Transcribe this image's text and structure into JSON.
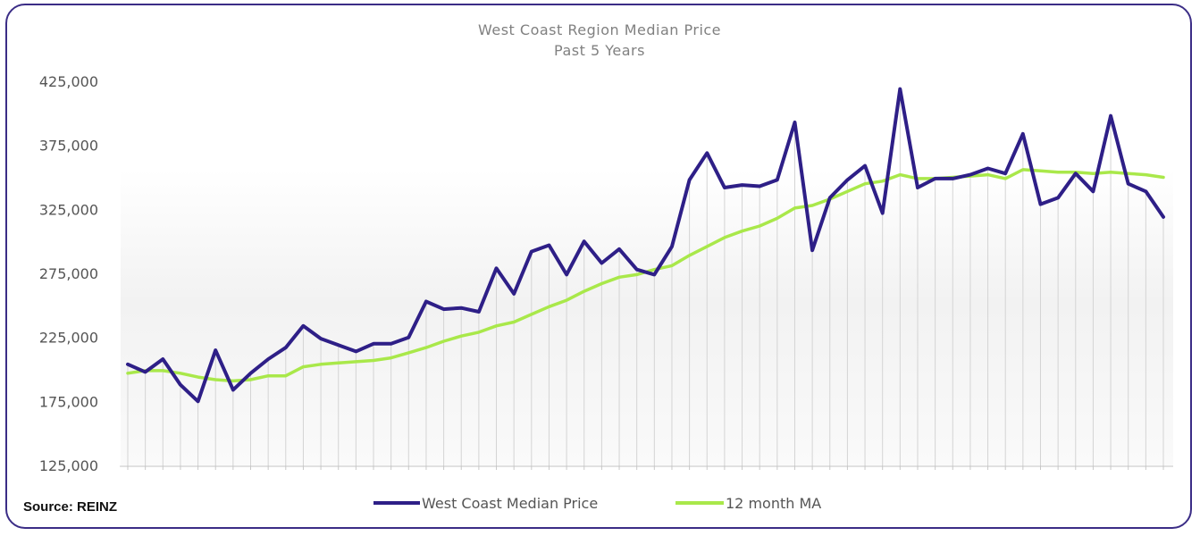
{
  "chart_data": {
    "type": "line",
    "title": "West Coast Region Median Price",
    "subtitle": "Past 5 Years",
    "source": "Source: REINZ",
    "ylim": [
      125000,
      425000
    ],
    "yticks": [
      "125,000",
      "175,000",
      "225,000",
      "275,000",
      "325,000",
      "375,000",
      "425,000"
    ],
    "ytick_values": [
      125000,
      175000,
      225000,
      275000,
      325000,
      375000,
      425000
    ],
    "grid": false,
    "legend": "bottom-center",
    "series": [
      {
        "name": "West Coast Median Price",
        "color": "#2e1f87",
        "values": [
          204000,
          198000,
          208000,
          188000,
          175000,
          215000,
          184000,
          197000,
          208000,
          217000,
          234000,
          224000,
          219000,
          214000,
          220000,
          220000,
          225000,
          253000,
          247000,
          248000,
          245000,
          279000,
          259000,
          292000,
          297000,
          274000,
          300000,
          283000,
          294000,
          278000,
          274000,
          296000,
          348000,
          369000,
          342000,
          344000,
          343000,
          348000,
          393000,
          293000,
          334000,
          348000,
          359000,
          322000,
          419000,
          342000,
          349000,
          349000,
          352000,
          357000,
          353000,
          384000,
          329000,
          334000,
          353000,
          339000,
          398000,
          345000,
          339000,
          319000
        ]
      },
      {
        "name": "12 month MA",
        "color": "#a9e84a",
        "values": [
          197000,
          199000,
          199000,
          197000,
          194000,
          192000,
          191000,
          192000,
          195000,
          195000,
          202000,
          204000,
          205000,
          206000,
          207000,
          209000,
          213000,
          217000,
          222000,
          226000,
          229000,
          234000,
          237000,
          243000,
          249000,
          254000,
          261000,
          267000,
          272000,
          274000,
          278000,
          281000,
          289000,
          296000,
          303000,
          308000,
          312000,
          318000,
          326000,
          328000,
          333000,
          339000,
          345000,
          347000,
          352000,
          349000,
          349000,
          350000,
          351000,
          352000,
          349000,
          356000,
          355000,
          354000,
          354000,
          353000,
          354000,
          353000,
          352000,
          350000
        ]
      }
    ]
  }
}
